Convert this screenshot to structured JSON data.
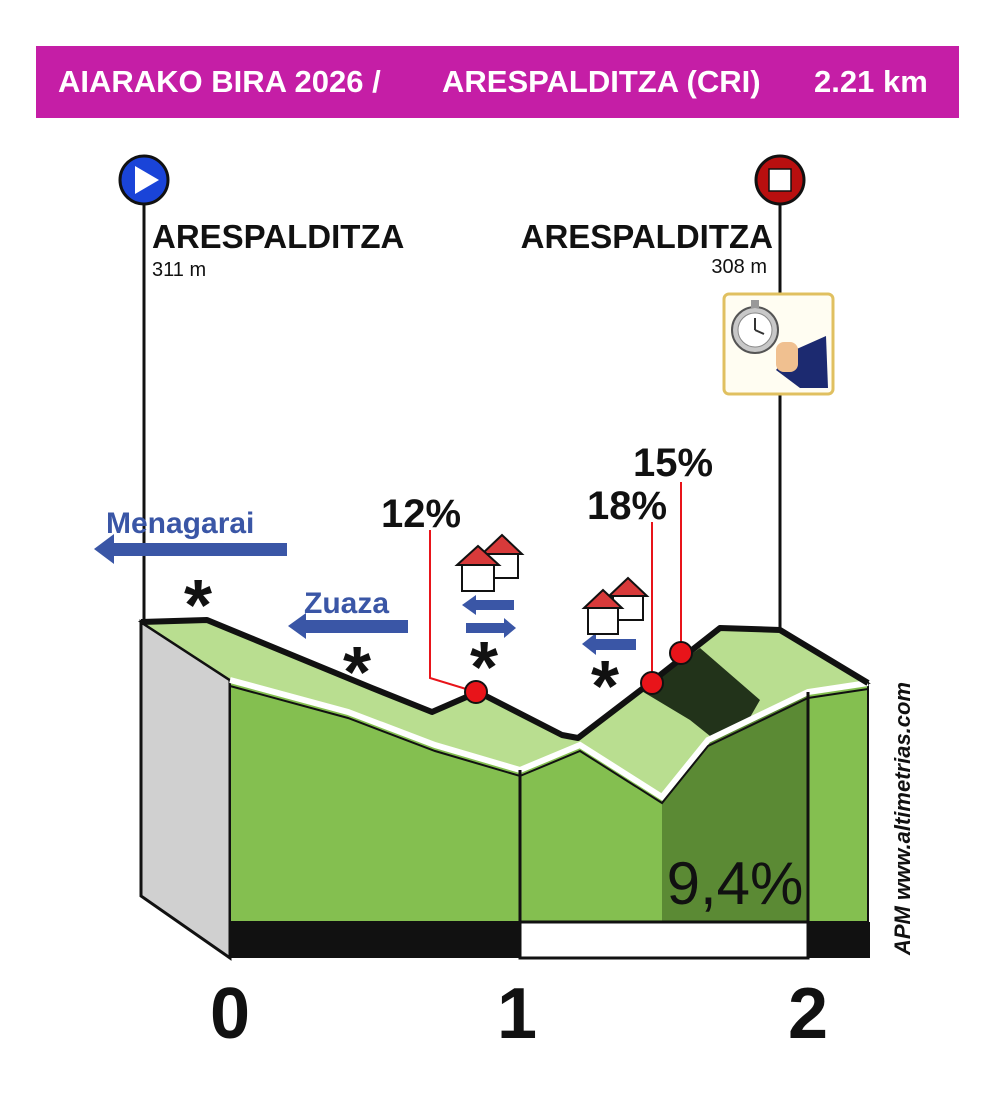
{
  "header": {
    "race": "AIARAKO BIRA 2026 /",
    "stage": "ARESPALDITZA (CRI)",
    "distance": "2.21 km",
    "bg_color": "#c51ea6"
  },
  "start": {
    "name": "ARESPALDITZA",
    "altitude": "311 m",
    "icon": "start-play-icon",
    "color": "#1a44d8"
  },
  "finish": {
    "name": "ARESPALDITZA",
    "altitude": "308 m",
    "icon": "finish-stop-icon",
    "color": "#b80f0f"
  },
  "finish_badge": {
    "icon": "stopwatch-hand-icon"
  },
  "directions": [
    {
      "label": "Menagarai"
    },
    {
      "label": "Zuaza"
    }
  ],
  "gradients": [
    {
      "label": "12%"
    },
    {
      "label": "18%"
    },
    {
      "label": "15%"
    }
  ],
  "section_gradient": "9,4%",
  "km_axis": [
    "0",
    "1",
    "2"
  ],
  "credit": "APM www.altimetrias.com",
  "colors": {
    "terrain": "#84bf50",
    "terrain_light": "#b9de90",
    "terrain_dark": "#5b8a34",
    "terrain_darker": "#22331a",
    "side": "#d0d0d0",
    "marker": "#e8141a"
  }
}
